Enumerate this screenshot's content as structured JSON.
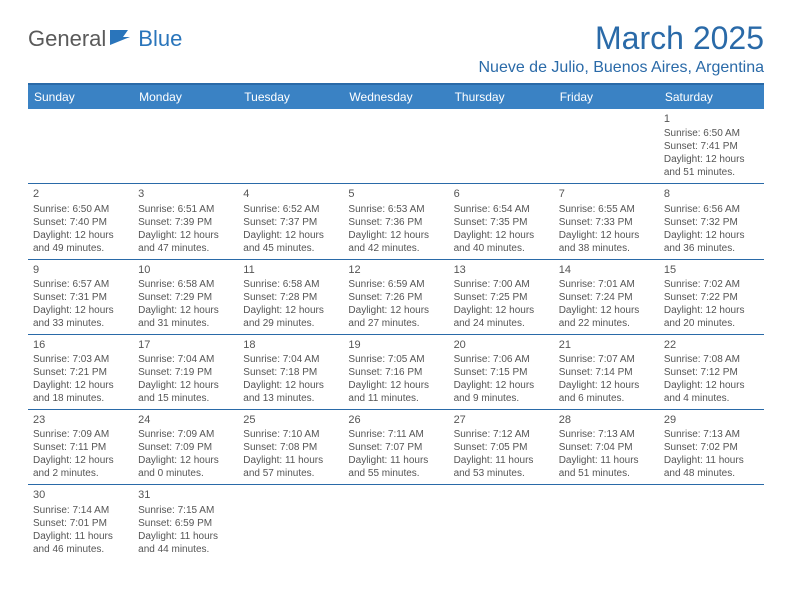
{
  "logo": {
    "text1": "General",
    "text2": "Blue"
  },
  "title": "March 2025",
  "location": "Nueve de Julio, Buenos Aires, Argentina",
  "colors": {
    "header_bg": "#3a82c4",
    "header_text": "#ffffff",
    "rule": "#2a6aa8",
    "title_color": "#2a6aa8",
    "body_text": "#555555",
    "logo_gray": "#5a5a5a",
    "logo_blue": "#2a75bb",
    "background": "#ffffff"
  },
  "typography": {
    "title_fontsize": 32,
    "location_fontsize": 16,
    "dayheader_fontsize": 12,
    "cell_fontsize": 10,
    "font_family": "Arial"
  },
  "day_names": [
    "Sunday",
    "Monday",
    "Tuesday",
    "Wednesday",
    "Thursday",
    "Friday",
    "Saturday"
  ],
  "weeks": [
    [
      null,
      null,
      null,
      null,
      null,
      null,
      {
        "n": "1",
        "sr": "Sunrise: 6:50 AM",
        "ss": "Sunset: 7:41 PM",
        "dl1": "Daylight: 12 hours",
        "dl2": "and 51 minutes."
      }
    ],
    [
      {
        "n": "2",
        "sr": "Sunrise: 6:50 AM",
        "ss": "Sunset: 7:40 PM",
        "dl1": "Daylight: 12 hours",
        "dl2": "and 49 minutes."
      },
      {
        "n": "3",
        "sr": "Sunrise: 6:51 AM",
        "ss": "Sunset: 7:39 PM",
        "dl1": "Daylight: 12 hours",
        "dl2": "and 47 minutes."
      },
      {
        "n": "4",
        "sr": "Sunrise: 6:52 AM",
        "ss": "Sunset: 7:37 PM",
        "dl1": "Daylight: 12 hours",
        "dl2": "and 45 minutes."
      },
      {
        "n": "5",
        "sr": "Sunrise: 6:53 AM",
        "ss": "Sunset: 7:36 PM",
        "dl1": "Daylight: 12 hours",
        "dl2": "and 42 minutes."
      },
      {
        "n": "6",
        "sr": "Sunrise: 6:54 AM",
        "ss": "Sunset: 7:35 PM",
        "dl1": "Daylight: 12 hours",
        "dl2": "and 40 minutes."
      },
      {
        "n": "7",
        "sr": "Sunrise: 6:55 AM",
        "ss": "Sunset: 7:33 PM",
        "dl1": "Daylight: 12 hours",
        "dl2": "and 38 minutes."
      },
      {
        "n": "8",
        "sr": "Sunrise: 6:56 AM",
        "ss": "Sunset: 7:32 PM",
        "dl1": "Daylight: 12 hours",
        "dl2": "and 36 minutes."
      }
    ],
    [
      {
        "n": "9",
        "sr": "Sunrise: 6:57 AM",
        "ss": "Sunset: 7:31 PM",
        "dl1": "Daylight: 12 hours",
        "dl2": "and 33 minutes."
      },
      {
        "n": "10",
        "sr": "Sunrise: 6:58 AM",
        "ss": "Sunset: 7:29 PM",
        "dl1": "Daylight: 12 hours",
        "dl2": "and 31 minutes."
      },
      {
        "n": "11",
        "sr": "Sunrise: 6:58 AM",
        "ss": "Sunset: 7:28 PM",
        "dl1": "Daylight: 12 hours",
        "dl2": "and 29 minutes."
      },
      {
        "n": "12",
        "sr": "Sunrise: 6:59 AM",
        "ss": "Sunset: 7:26 PM",
        "dl1": "Daylight: 12 hours",
        "dl2": "and 27 minutes."
      },
      {
        "n": "13",
        "sr": "Sunrise: 7:00 AM",
        "ss": "Sunset: 7:25 PM",
        "dl1": "Daylight: 12 hours",
        "dl2": "and 24 minutes."
      },
      {
        "n": "14",
        "sr": "Sunrise: 7:01 AM",
        "ss": "Sunset: 7:24 PM",
        "dl1": "Daylight: 12 hours",
        "dl2": "and 22 minutes."
      },
      {
        "n": "15",
        "sr": "Sunrise: 7:02 AM",
        "ss": "Sunset: 7:22 PM",
        "dl1": "Daylight: 12 hours",
        "dl2": "and 20 minutes."
      }
    ],
    [
      {
        "n": "16",
        "sr": "Sunrise: 7:03 AM",
        "ss": "Sunset: 7:21 PM",
        "dl1": "Daylight: 12 hours",
        "dl2": "and 18 minutes."
      },
      {
        "n": "17",
        "sr": "Sunrise: 7:04 AM",
        "ss": "Sunset: 7:19 PM",
        "dl1": "Daylight: 12 hours",
        "dl2": "and 15 minutes."
      },
      {
        "n": "18",
        "sr": "Sunrise: 7:04 AM",
        "ss": "Sunset: 7:18 PM",
        "dl1": "Daylight: 12 hours",
        "dl2": "and 13 minutes."
      },
      {
        "n": "19",
        "sr": "Sunrise: 7:05 AM",
        "ss": "Sunset: 7:16 PM",
        "dl1": "Daylight: 12 hours",
        "dl2": "and 11 minutes."
      },
      {
        "n": "20",
        "sr": "Sunrise: 7:06 AM",
        "ss": "Sunset: 7:15 PM",
        "dl1": "Daylight: 12 hours",
        "dl2": "and 9 minutes."
      },
      {
        "n": "21",
        "sr": "Sunrise: 7:07 AM",
        "ss": "Sunset: 7:14 PM",
        "dl1": "Daylight: 12 hours",
        "dl2": "and 6 minutes."
      },
      {
        "n": "22",
        "sr": "Sunrise: 7:08 AM",
        "ss": "Sunset: 7:12 PM",
        "dl1": "Daylight: 12 hours",
        "dl2": "and 4 minutes."
      }
    ],
    [
      {
        "n": "23",
        "sr": "Sunrise: 7:09 AM",
        "ss": "Sunset: 7:11 PM",
        "dl1": "Daylight: 12 hours",
        "dl2": "and 2 minutes."
      },
      {
        "n": "24",
        "sr": "Sunrise: 7:09 AM",
        "ss": "Sunset: 7:09 PM",
        "dl1": "Daylight: 12 hours",
        "dl2": "and 0 minutes."
      },
      {
        "n": "25",
        "sr": "Sunrise: 7:10 AM",
        "ss": "Sunset: 7:08 PM",
        "dl1": "Daylight: 11 hours",
        "dl2": "and 57 minutes."
      },
      {
        "n": "26",
        "sr": "Sunrise: 7:11 AM",
        "ss": "Sunset: 7:07 PM",
        "dl1": "Daylight: 11 hours",
        "dl2": "and 55 minutes."
      },
      {
        "n": "27",
        "sr": "Sunrise: 7:12 AM",
        "ss": "Sunset: 7:05 PM",
        "dl1": "Daylight: 11 hours",
        "dl2": "and 53 minutes."
      },
      {
        "n": "28",
        "sr": "Sunrise: 7:13 AM",
        "ss": "Sunset: 7:04 PM",
        "dl1": "Daylight: 11 hours",
        "dl2": "and 51 minutes."
      },
      {
        "n": "29",
        "sr": "Sunrise: 7:13 AM",
        "ss": "Sunset: 7:02 PM",
        "dl1": "Daylight: 11 hours",
        "dl2": "and 48 minutes."
      }
    ],
    [
      {
        "n": "30",
        "sr": "Sunrise: 7:14 AM",
        "ss": "Sunset: 7:01 PM",
        "dl1": "Daylight: 11 hours",
        "dl2": "and 46 minutes."
      },
      {
        "n": "31",
        "sr": "Sunrise: 7:15 AM",
        "ss": "Sunset: 6:59 PM",
        "dl1": "Daylight: 11 hours",
        "dl2": "and 44 minutes."
      },
      null,
      null,
      null,
      null,
      null
    ]
  ]
}
